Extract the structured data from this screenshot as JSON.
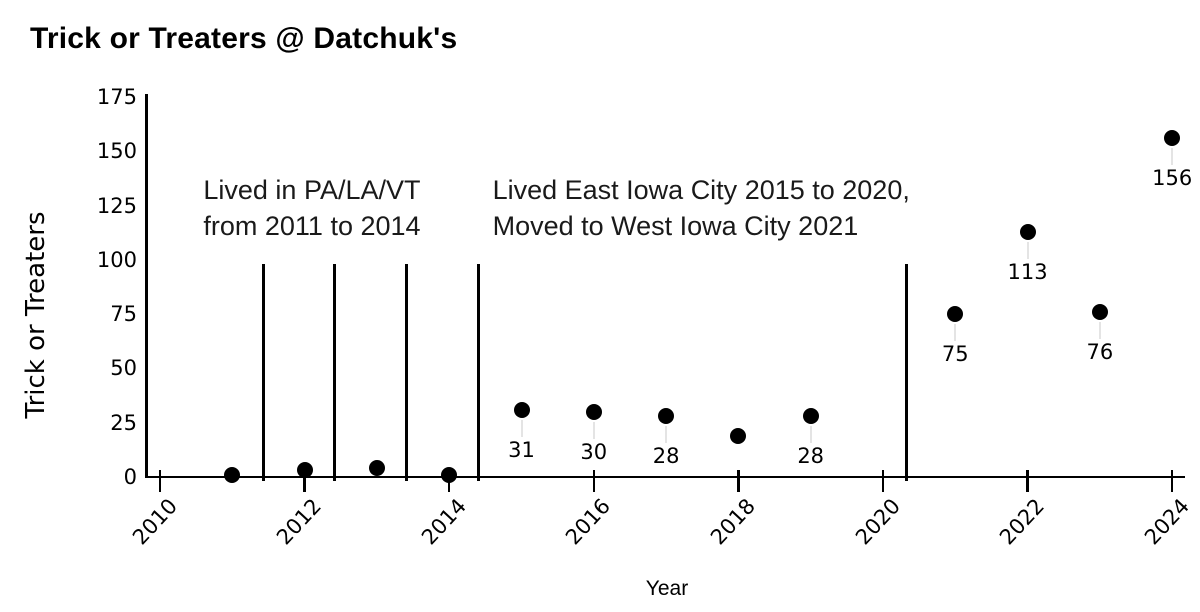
{
  "chart_data": {
    "type": "scatter",
    "title": "Trick or Treaters @ Datchuk's",
    "xlabel": "Year",
    "ylabel": "Trick or Treaters",
    "x_ticks": [
      "2010",
      "2012",
      "2014",
      "2016",
      "2018",
      "2020",
      "2022",
      "2024"
    ],
    "x_tick_years": [
      2010,
      2012,
      2014,
      2016,
      2018,
      2020,
      2022,
      2024
    ],
    "y_ticks": [
      "0",
      "25",
      "50",
      "75",
      "100",
      "125",
      "150",
      "175"
    ],
    "y_tick_values": [
      0,
      25,
      50,
      75,
      100,
      125,
      150,
      175
    ],
    "xlim": [
      2009.8,
      2024.35
    ],
    "ylim": [
      0,
      175
    ],
    "grid": false,
    "legend": null,
    "marker_color": "#000000",
    "leader_line_color": "#e4e4e4",
    "points": [
      {
        "year": 2011,
        "value": 1,
        "label": null
      },
      {
        "year": 2012,
        "value": 3,
        "label": null
      },
      {
        "year": 2013,
        "value": 4,
        "label": null
      },
      {
        "year": 2014,
        "value": 1,
        "label": null
      },
      {
        "year": 2015,
        "value": 31,
        "label": "31"
      },
      {
        "year": 2016,
        "value": 30,
        "label": "30"
      },
      {
        "year": 2017,
        "value": 28,
        "label": "28"
      },
      {
        "year": 2018,
        "value": 19,
        "label": null
      },
      {
        "year": 2019,
        "value": 28,
        "label": "28"
      },
      {
        "year": 2021,
        "value": 75,
        "label": "75"
      },
      {
        "year": 2022,
        "value": 113,
        "label": "113"
      },
      {
        "year": 2023,
        "value": 76,
        "label": "76"
      },
      {
        "year": 2024,
        "value": 156,
        "label": "156"
      }
    ],
    "era_dividers": {
      "years": [
        2011.43,
        2012.41,
        2013.41,
        2014.4,
        2020.33
      ],
      "top_value": 98
    },
    "notes": [
      {
        "text": "Lived in PA/LA/VT\nfrom 2011 to 2014",
        "x_year": 2010.6,
        "y_value": 140.5
      },
      {
        "text": "Lived East Iowa City 2015 to 2020,\nMoved to West Iowa City 2021",
        "x_year": 2014.6,
        "y_value": 140.5
      }
    ]
  }
}
